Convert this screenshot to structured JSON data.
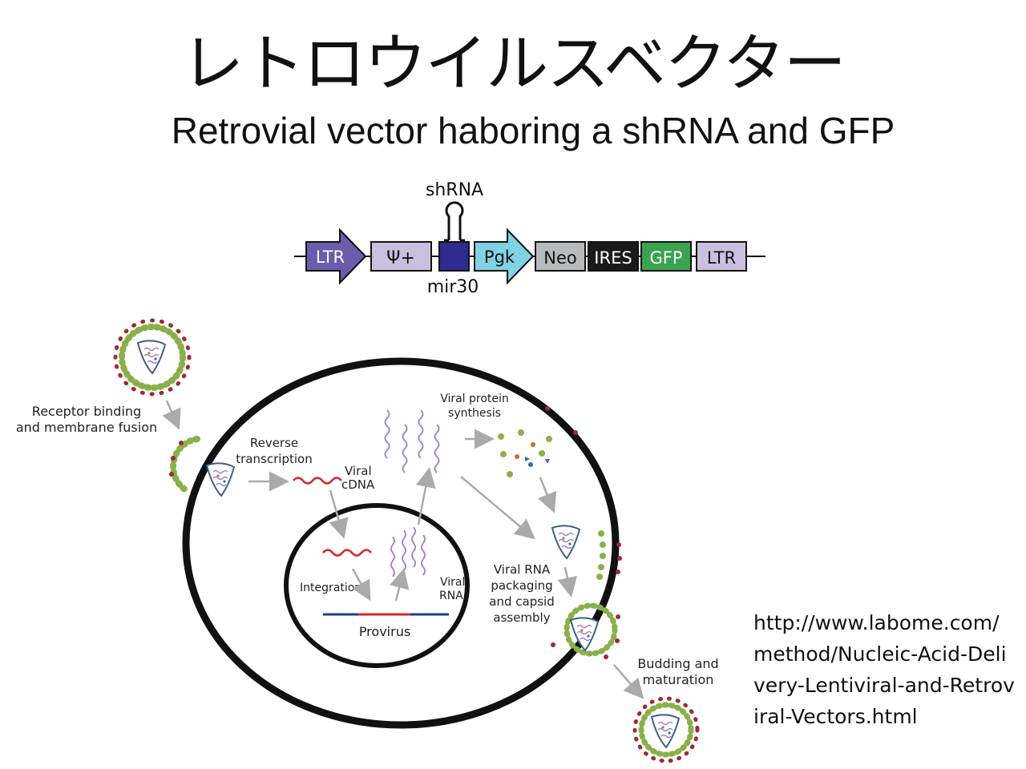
{
  "title_jp": "レトロウイルスベクター",
  "title_en": "Retrovial vector haboring a shRNA and GFP",
  "vector": {
    "shrna_label": "shRNA",
    "mir_label": "mir30",
    "elements": [
      "LTR",
      "Ψ+",
      "Pgk",
      "Neo",
      "IRES",
      "GFP",
      "LTR"
    ]
  },
  "cycle": {
    "receptor_binding": [
      "Receptor binding",
      "and membrane fusion"
    ],
    "reverse_transcription": [
      "Reverse",
      "transcription"
    ],
    "viral_cdna": [
      "Viral",
      "cDNA"
    ],
    "viral_protein_synthesis": [
      "Viral protein",
      "synthesis"
    ],
    "integration": "Integration",
    "provirus": "Provirus",
    "viral_rna": [
      "Viral",
      "RNA"
    ],
    "packaging": [
      "Viral RNA",
      "packaging",
      "and capsid",
      "assembly"
    ],
    "budding": [
      "Budding and",
      "maturation"
    ]
  },
  "colors": {
    "ltr": "#6a5cab",
    "psi": "#cbbfe0",
    "mir": "#2e2a8f",
    "pgk": "#7fd3e3",
    "neo": "#b8bbbb",
    "ires": "#1a1a1a",
    "gfp": "#3aa34f",
    "viral_rna": "#a080c8",
    "cdna": "#d62828",
    "envelope_green": "#8ab04a",
    "spike": "#a02838",
    "arrow": "#aaaaaa"
  },
  "source_url": "http://www.labome.com/method/Nucleic-Acid-Delivery-Lentiviral-and-Retroviral-Vectors.html"
}
